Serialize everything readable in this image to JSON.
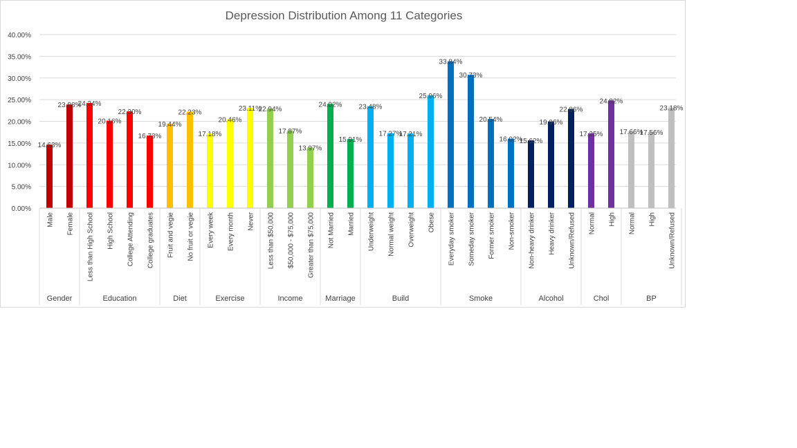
{
  "chart_data": {
    "type": "bar",
    "title": "Depression Distribution Among 11 Categories",
    "ylim": [
      0,
      40
    ],
    "yticks": [
      "0.00%",
      "5.00%",
      "10.00%",
      "15.00%",
      "20.00%",
      "25.00%",
      "30.00%",
      "35.00%",
      "40.00%"
    ],
    "grid": true,
    "legend": "none",
    "groups": [
      {
        "name": "Gender",
        "bars": [
          {
            "label": "Male",
            "value": 14.63,
            "value_label": "14.63%",
            "color": "#c00000"
          },
          {
            "label": "Female",
            "value": 23.88,
            "value_label": "23.88%",
            "color": "#c00000"
          }
        ]
      },
      {
        "name": "Education",
        "bars": [
          {
            "label": "Less than High School",
            "value": 24.24,
            "value_label": "24.24%",
            "color": "#ff0000"
          },
          {
            "label": "High School",
            "value": 20.16,
            "value_label": "20.16%",
            "color": "#ff0000"
          },
          {
            "label": "College Attending",
            "value": 22.3,
            "value_label": "22.30%",
            "color": "#ff0000"
          },
          {
            "label": "College graduates",
            "value": 16.73,
            "value_label": "16.73%",
            "color": "#ff0000"
          }
        ]
      },
      {
        "name": "Diet",
        "bars": [
          {
            "label": "Fruit and vegie",
            "value": 19.44,
            "value_label": "19.44%",
            "color": "#ffc000"
          },
          {
            "label": "No fruit or vegie",
            "value": 22.23,
            "value_label": "22.23%",
            "color": "#ffc000"
          }
        ]
      },
      {
        "name": "Exercise",
        "bars": [
          {
            "label": "Every week",
            "value": 17.18,
            "value_label": "17.18%",
            "color": "#ffff00"
          },
          {
            "label": "Every month",
            "value": 20.46,
            "value_label": "20.46%",
            "color": "#ffff00"
          },
          {
            "label": "Never",
            "value": 23.11,
            "value_label": "23.11%",
            "color": "#ffff00"
          }
        ]
      },
      {
        "name": "Income",
        "bars": [
          {
            "label": "Less than $50,000",
            "value": 22.94,
            "value_label": "22.94%",
            "color": "#92d050"
          },
          {
            "label": "$50,000 - $75,000",
            "value": 17.87,
            "value_label": "17.87%",
            "color": "#92d050"
          },
          {
            "label": "Greater than $75,000",
            "value": 13.97,
            "value_label": "13.97%",
            "color": "#92d050"
          }
        ]
      },
      {
        "name": "Marriage",
        "bars": [
          {
            "label": "Not Married",
            "value": 24.02,
            "value_label": "24.02%",
            "color": "#00b050"
          },
          {
            "label": "Married",
            "value": 15.91,
            "value_label": "15.91%",
            "color": "#00b050"
          }
        ]
      },
      {
        "name": "Build",
        "bars": [
          {
            "label": "Underweight",
            "value": 23.48,
            "value_label": "23.48%",
            "color": "#00b0f0"
          },
          {
            "label": "Normal weight",
            "value": 17.27,
            "value_label": "17.27%",
            "color": "#00b0f0"
          },
          {
            "label": "Overweight",
            "value": 17.21,
            "value_label": "17.21%",
            "color": "#00b0f0"
          },
          {
            "label": "Obese",
            "value": 25.96,
            "value_label": "25.96%",
            "color": "#00b0f0"
          }
        ]
      },
      {
        "name": "Smoke",
        "bars": [
          {
            "label": "Everyday smoker",
            "value": 33.84,
            "value_label": "33.84%",
            "color": "#0070c0"
          },
          {
            "label": "Someday smoker",
            "value": 30.73,
            "value_label": "30.73%",
            "color": "#0070c0"
          },
          {
            "label": "Former smoker",
            "value": 20.54,
            "value_label": "20.54%",
            "color": "#0070c0"
          },
          {
            "label": "Non-smoker",
            "value": 16.02,
            "value_label": "16.02%",
            "color": "#0070c0"
          }
        ]
      },
      {
        "name": "Alcohol",
        "bars": [
          {
            "label": "Non-heavy drinker",
            "value": 15.62,
            "value_label": "15.62%",
            "color": "#002060"
          },
          {
            "label": "Heavy drinker",
            "value": 19.96,
            "value_label": "19.96%",
            "color": "#002060"
          },
          {
            "label": "Unknown/Refused",
            "value": 22.86,
            "value_label": "22.86%",
            "color": "#002060"
          }
        ]
      },
      {
        "name": "Chol",
        "bars": [
          {
            "label": "Normal",
            "value": 17.25,
            "value_label": "17.25%",
            "color": "#7030a0"
          },
          {
            "label": "High",
            "value": 24.82,
            "value_label": "24.82%",
            "color": "#7030a0"
          }
        ]
      },
      {
        "name": "BP",
        "bars": [
          {
            "label": "Normal",
            "value": 17.66,
            "value_label": "17.66%",
            "color": "#bfbfbf"
          },
          {
            "label": "High",
            "value": 17.56,
            "value_label": "17.56%",
            "color": "#bfbfbf"
          },
          {
            "label": "Unknown/Refused",
            "value": 23.18,
            "value_label": "23.18%",
            "color": "#bfbfbf"
          }
        ]
      }
    ]
  }
}
